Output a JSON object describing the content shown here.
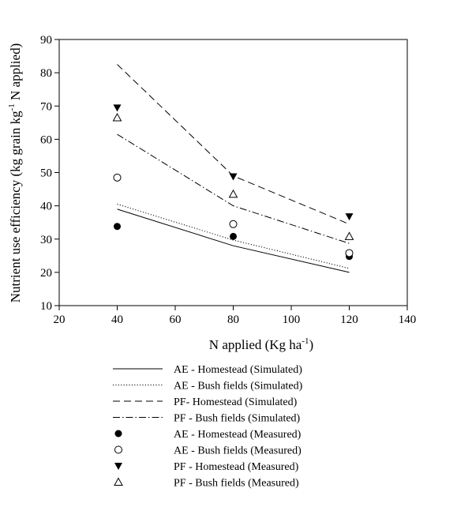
{
  "chart_data": {
    "type": "line",
    "xlabel": "N applied (Kg ha",
    "xlabel_sup": "-1",
    "xlabel_end": ")",
    "ylabel": "Nutrient use efficiency (kg grain kg",
    "ylabel_sup": "-1",
    "ylabel_end": " N applied)",
    "xlim": [
      20,
      140
    ],
    "ylim": [
      10,
      90
    ],
    "xticks": [
      "20",
      "40",
      "60",
      "80",
      "100",
      "120",
      "140"
    ],
    "yticks": [
      "10",
      "20",
      "30",
      "40",
      "50",
      "60",
      "70",
      "80",
      "90"
    ],
    "grid": false,
    "legend_position": "bottom",
    "series": [
      {
        "name": "AE - Homestead (Simulated)",
        "kind": "line",
        "dash": "solid",
        "x": [
          40,
          80,
          120
        ],
        "y": [
          39,
          28,
          20
        ]
      },
      {
        "name": "AE - Bush fields (Simulated)",
        "kind": "line",
        "dash": "dotted",
        "x": [
          40,
          80,
          120
        ],
        "y": [
          40.5,
          29.7,
          21.2
        ]
      },
      {
        "name": "PF- Homestead (Simulated)",
        "kind": "line",
        "dash": "dashed",
        "x": [
          40,
          80,
          120
        ],
        "y": [
          82.5,
          49,
          34.5
        ]
      },
      {
        "name": "PF - Bush fields (Simulated)",
        "kind": "line",
        "dash": "dashdot",
        "x": [
          40,
          80,
          120
        ],
        "y": [
          61.5,
          40,
          28.7
        ]
      },
      {
        "name": "AE - Homestead (Measured)",
        "kind": "marker",
        "marker": "filled-circle",
        "x": [
          40,
          80,
          120
        ],
        "y": [
          33.8,
          30.8,
          24.8
        ]
      },
      {
        "name": "AE - Bush fields (Measured)",
        "kind": "marker",
        "marker": "open-circle",
        "x": [
          40,
          80,
          120
        ],
        "y": [
          48.5,
          34.5,
          25.8
        ]
      },
      {
        "name": "PF - Homestead (Measured)",
        "kind": "marker",
        "marker": "filled-triangle-down",
        "x": [
          40,
          80,
          120
        ],
        "y": [
          69.5,
          48.8,
          36.8
        ]
      },
      {
        "name": "PF - Bush fields (Measured)",
        "kind": "marker",
        "marker": "open-triangle-up",
        "x": [
          40,
          80,
          120
        ],
        "y": [
          66.5,
          43.5,
          30.8
        ]
      }
    ]
  }
}
